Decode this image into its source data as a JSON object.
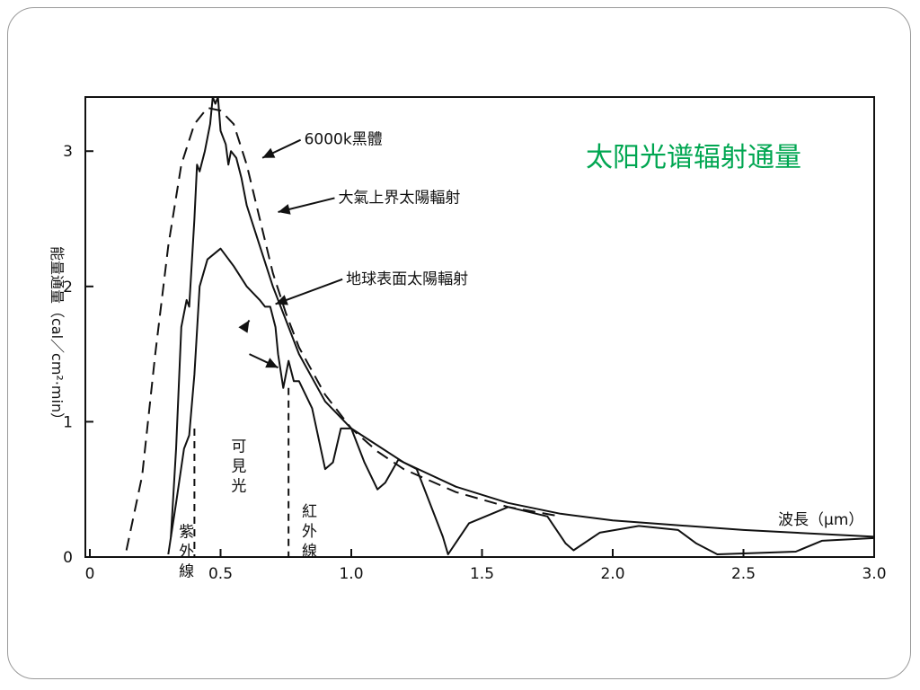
{
  "slide": {
    "title": "太阳光谱辐射通量"
  },
  "chart_data": {
    "type": "line",
    "title": "",
    "xlabel": "波長（μm）",
    "ylabel": "能量通量（cal／cm²·min）",
    "xlim": [
      0,
      3.0
    ],
    "ylim": [
      0,
      3.4
    ],
    "x_ticks": [
      {
        "value": 0,
        "label": "0"
      },
      {
        "value": 0.5,
        "label": "0.5"
      },
      {
        "value": 1.0,
        "label": "1.0"
      },
      {
        "value": 1.5,
        "label": "1.5"
      },
      {
        "value": 2.0,
        "label": "2.0"
      },
      {
        "value": 2.5,
        "label": "2.5"
      },
      {
        "value": 3.0,
        "label": "3.0"
      }
    ],
    "y_ticks": [
      {
        "value": 0,
        "label": "0"
      },
      {
        "value": 1,
        "label": "1"
      },
      {
        "value": 2,
        "label": "2"
      },
      {
        "value": 3,
        "label": "3"
      }
    ],
    "grid": false,
    "series": [
      {
        "name": "6000k黑體",
        "style": "dashed",
        "x": [
          0.14,
          0.2,
          0.25,
          0.3,
          0.35,
          0.4,
          0.45,
          0.5,
          0.55,
          0.6,
          0.65,
          0.7,
          0.75,
          0.8,
          0.9,
          1.0,
          1.1,
          1.2,
          1.4,
          1.6,
          1.8
        ],
        "y": [
          0.05,
          0.6,
          1.5,
          2.3,
          2.9,
          3.2,
          3.32,
          3.3,
          3.2,
          2.9,
          2.5,
          2.1,
          1.8,
          1.55,
          1.2,
          0.95,
          0.78,
          0.65,
          0.48,
          0.37,
          0.3
        ]
      },
      {
        "name": "大氣上界太陽輻射",
        "style": "solid",
        "x": [
          0.31,
          0.33,
          0.35,
          0.37,
          0.38,
          0.4,
          0.41,
          0.42,
          0.44,
          0.46,
          0.47,
          0.48,
          0.49,
          0.5,
          0.52,
          0.53,
          0.54,
          0.56,
          0.58,
          0.6,
          0.65,
          0.7,
          0.75,
          0.8,
          0.9,
          1.0,
          1.2,
          1.4,
          1.6,
          1.8,
          2.0,
          2.5,
          3.0
        ],
        "y": [
          0.15,
          0.8,
          1.7,
          1.9,
          1.85,
          2.5,
          2.9,
          2.85,
          3.0,
          3.2,
          3.4,
          3.35,
          3.4,
          3.15,
          3.05,
          2.9,
          3.0,
          2.95,
          2.8,
          2.6,
          2.3,
          2.0,
          1.75,
          1.5,
          1.15,
          0.95,
          0.7,
          0.52,
          0.4,
          0.32,
          0.27,
          0.2,
          0.15
        ]
      },
      {
        "name": "地球表面太陽輻射",
        "style": "solid",
        "x": [
          0.3,
          0.33,
          0.36,
          0.38,
          0.4,
          0.42,
          0.45,
          0.5,
          0.55,
          0.6,
          0.65,
          0.67,
          0.69,
          0.71,
          0.72,
          0.74,
          0.76,
          0.78,
          0.8,
          0.85,
          0.9,
          0.93,
          0.96,
          1.0,
          1.05,
          1.1,
          1.13,
          1.18,
          1.25,
          1.35,
          1.37,
          1.45,
          1.6,
          1.75,
          1.82,
          1.85,
          1.95,
          2.1,
          2.25,
          2.32,
          2.4,
          2.7,
          2.8,
          2.9,
          3.0
        ],
        "y": [
          0.02,
          0.4,
          0.8,
          0.9,
          1.35,
          2.0,
          2.2,
          2.28,
          2.15,
          2.0,
          1.9,
          1.85,
          1.85,
          1.7,
          1.5,
          1.25,
          1.45,
          1.3,
          1.3,
          1.1,
          0.65,
          0.7,
          0.95,
          0.95,
          0.7,
          0.5,
          0.55,
          0.72,
          0.65,
          0.15,
          0.02,
          0.25,
          0.37,
          0.3,
          0.1,
          0.05,
          0.18,
          0.23,
          0.2,
          0.1,
          0.02,
          0.04,
          0.12,
          0.13,
          0.14
        ]
      }
    ],
    "annotations": [
      {
        "text": "6000k黑體",
        "point": [
          0.66,
          2.95
        ],
        "label_at": [
          0.82,
          3.05
        ]
      },
      {
        "text": "大氣上界太陽輻射",
        "point": [
          0.72,
          2.55
        ],
        "label_at": [
          0.95,
          2.62
        ]
      },
      {
        "text": "地球表面太陽輻射",
        "point": [
          0.71,
          1.87
        ],
        "label_at": [
          0.98,
          2.02
        ]
      },
      {
        "text": "",
        "point": [
          0.61,
          1.75
        ],
        "label_at": [
          0.6,
          1.72
        ]
      },
      {
        "text": "",
        "point": [
          0.72,
          1.4
        ],
        "label_at": [
          0.61,
          1.5
        ]
      }
    ],
    "bands": [
      {
        "text": "紫外線",
        "label_x": 0.37,
        "label_y": 0.15
      },
      {
        "text": "可見光",
        "label_x": 0.57,
        "label_y": 0.78
      },
      {
        "text": "紅外線",
        "label_x": 0.84,
        "label_y": 0.3
      }
    ],
    "band_boundaries": [
      {
        "x": 0.4,
        "y_top": 0.95
      },
      {
        "x": 0.76,
        "y_top": 1.25
      }
    ]
  }
}
